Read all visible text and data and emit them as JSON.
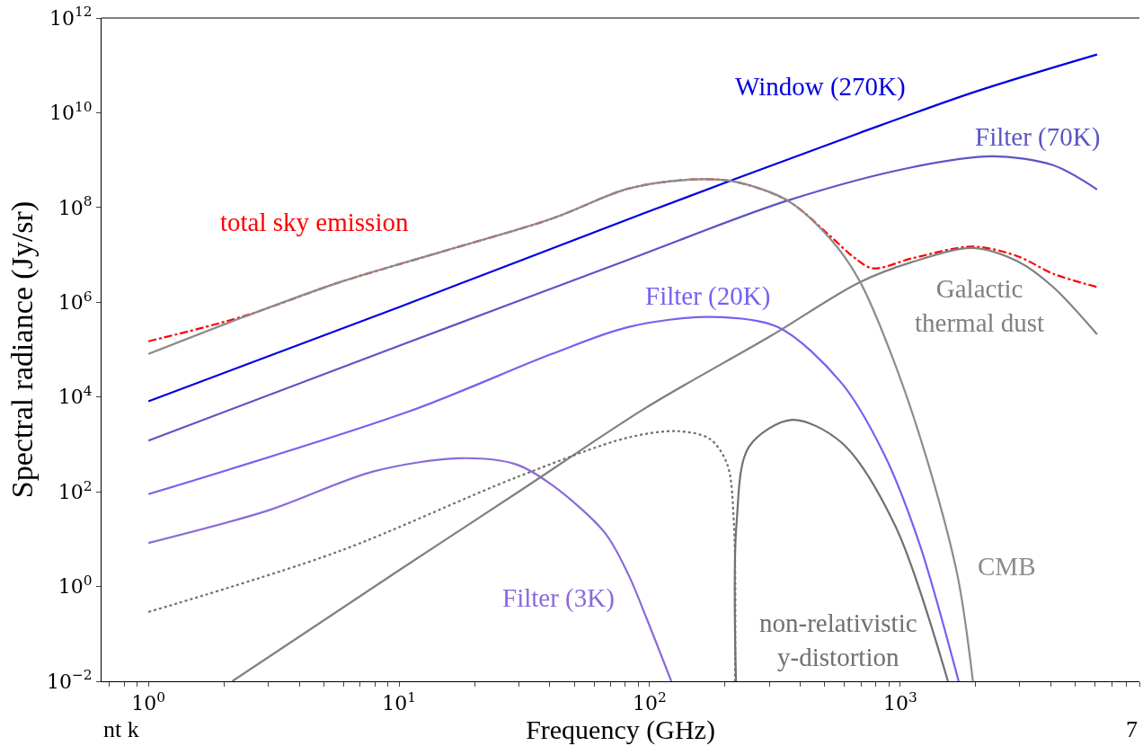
{
  "chart_data": {
    "type": "line",
    "xlabel": "Frequency (GHz)",
    "ylabel": "Spectral radiance (Jy/sr)",
    "log": "xy",
    "xlim": [
      0.65,
      9000
    ],
    "ylim": [
      0.01,
      1000000000000.0
    ],
    "xticks": [
      {
        "value": 0.7,
        "label": null
      },
      {
        "value": 0.8,
        "label": null
      },
      {
        "value": 0.9,
        "label": null
      },
      {
        "value": 1,
        "label": "10$^{0}$"
      },
      {
        "value": 2,
        "label": null
      },
      {
        "value": 3,
        "label": null
      },
      {
        "value": 4,
        "label": null
      },
      {
        "value": 5,
        "label": null
      },
      {
        "value": 6,
        "label": null
      },
      {
        "value": 7,
        "label": null
      },
      {
        "value": 8,
        "label": null
      },
      {
        "value": 9,
        "label": null
      },
      {
        "value": 10,
        "label": "10$^{1}$"
      },
      {
        "value": 20,
        "label": null
      },
      {
        "value": 30,
        "label": null
      },
      {
        "value": 40,
        "label": null
      },
      {
        "value": 50,
        "label": null
      },
      {
        "value": 60,
        "label": null
      },
      {
        "value": 70,
        "label": null
      },
      {
        "value": 80,
        "label": null
      },
      {
        "value": 90,
        "label": null
      },
      {
        "value": 100,
        "label": "10$^{2}$"
      },
      {
        "value": 200,
        "label": null
      },
      {
        "value": 300,
        "label": null
      },
      {
        "value": 400,
        "label": null
      },
      {
        "value": 500,
        "label": null
      },
      {
        "value": 600,
        "label": null
      },
      {
        "value": 700,
        "label": null
      },
      {
        "value": 800,
        "label": null
      },
      {
        "value": 900,
        "label": null
      },
      {
        "value": 1000,
        "label": "10$^{3}$"
      },
      {
        "value": 2000,
        "label": null
      },
      {
        "value": 3000,
        "label": null
      },
      {
        "value": 4000,
        "label": null
      },
      {
        "value": 5000,
        "label": null
      },
      {
        "value": 6000,
        "label": null
      },
      {
        "value": 7000,
        "label": null
      },
      {
        "value": 8000,
        "label": null
      },
      {
        "value": 9000,
        "label": null
      }
    ],
    "yticks": [
      {
        "value": 0.01,
        "label": "10$^{−2}$"
      },
      {
        "value": 1,
        "label": "10$^{0}$"
      },
      {
        "value": 100,
        "label": "10$^{2}$"
      },
      {
        "value": 10000.0,
        "label": "10$^{4}$"
      },
      {
        "value": 1000000.0,
        "label": "10$^{6}$"
      },
      {
        "value": 100000000.0,
        "label": "10$^{8}$"
      },
      {
        "value": 10000000000.0,
        "label": "10$^{10}$"
      },
      {
        "value": 1000000000000.0,
        "label": "10$^{12}$"
      }
    ],
    "series": [
      {
        "name": "total sky emission",
        "color": "#ff0000",
        "line_style": "dashdot",
        "x": [
          1,
          2.38,
          5.74,
          15.1,
          40.7,
          82.2,
          148,
          219,
          355,
          525,
          646,
          776,
          1120,
          1950,
          2950,
          4070,
          6100
        ],
        "values": [
          150000.0,
          500000.0,
          2600000.0,
          12000000.0,
          58000000.0,
          250000000.0,
          390000000.0,
          350000000.0,
          140000000.0,
          25000000.0,
          9300000.0,
          5200000.0,
          8500000.0,
          15000000.0,
          9300000.0,
          4000000.0,
          2100000.0
        ]
      },
      {
        "name": "Window (270K)",
        "color": "#0000e0",
        "x": [
          1,
          10,
          97,
          684,
          2000,
          6100
        ],
        "values": [
          8100.0,
          790000.0,
          79000000.0,
          3700000000.0,
          28000000000.0,
          170000000000.0
        ]
      },
      {
        "name": "Filter (70K)",
        "color": "#5a55c4",
        "x": [
          1,
          10,
          82.2,
          355,
          1120,
          2340,
          4070,
          6100
        ],
        "values": [
          1200.0,
          120000.0,
          7900000.0,
          140000000.0,
          710000000.0,
          1200000000.0,
          780000000.0,
          240000000.0
        ]
      },
      {
        "name": "Filter (20K)",
        "color": "#7462f0",
        "x": [
          1,
          11,
          40.7,
          82.2,
          174,
          324,
          582,
          861,
          1190,
          1710
        ],
        "values": [
          89,
          5000.0,
          81000.0,
          300000.0,
          490000.0,
          300000.0,
          20000.0,
          630,
          8.3,
          0.01
        ]
      },
      {
        "name": "Filter (3K)",
        "color": "#8a6ad8",
        "x": [
          1,
          2.99,
          7.94,
          17.4,
          29.3,
          40.7,
          66,
          82.2,
          97,
          122
        ],
        "values": [
          8.3,
          40,
          270,
          510,
          380,
          140,
          14,
          1.8,
          0.22,
          0.01
        ]
      },
      {
        "name": "Galactic\nthermal dust",
        "color": "#808080",
        "x": [
          2.16,
          10,
          31.6,
          97,
          302,
          684,
          1120,
          1950,
          2950,
          4070,
          6100
        ],
        "values": [
          0.01,
          2.2,
          120,
          6000.0,
          190000.0,
          2600000.0,
          7100000.0,
          14000000.0,
          7200000.0,
          2100000.0,
          210000.0
        ]
      },
      {
        "name": "CMB",
        "color": "#8c8c8c",
        "x": [
          1,
          2.38,
          5.74,
          15.1,
          40.7,
          82.2,
          148,
          219,
          355,
          525,
          684,
          955,
          1320,
          1700,
          1950
        ],
        "values": [
          81000.0,
          480000.0,
          2600000.0,
          12000000.0,
          58000000.0,
          250000000.0,
          390000000.0,
          350000000.0,
          140000000.0,
          22000000.0,
          3000000.0,
          48000.0,
          270,
          1.5,
          0.01
        ]
      },
      {
        "name": "non-relativistic\ny-distortion",
        "color": "#707070",
        "x": [
          221,
          222,
          249,
          369,
          582,
          951,
          1550
        ],
        "values": [
          0.01,
          20,
          890,
          3300.0,
          1100.0,
          20,
          0.01
        ]
      },
      {
        "color": "#707070",
        "line_style": "dotted",
        "x": [
          1,
          5.74,
          29.3,
          82.2,
          130,
          174,
          204,
          217,
          219
        ],
        "values": [
          0.29,
          5.5,
          200,
          1400.0,
          1900.0,
          1300.0,
          380,
          20,
          0.01
        ]
      }
    ],
    "annotations": [
      "nt k",
      "7"
    ]
  }
}
